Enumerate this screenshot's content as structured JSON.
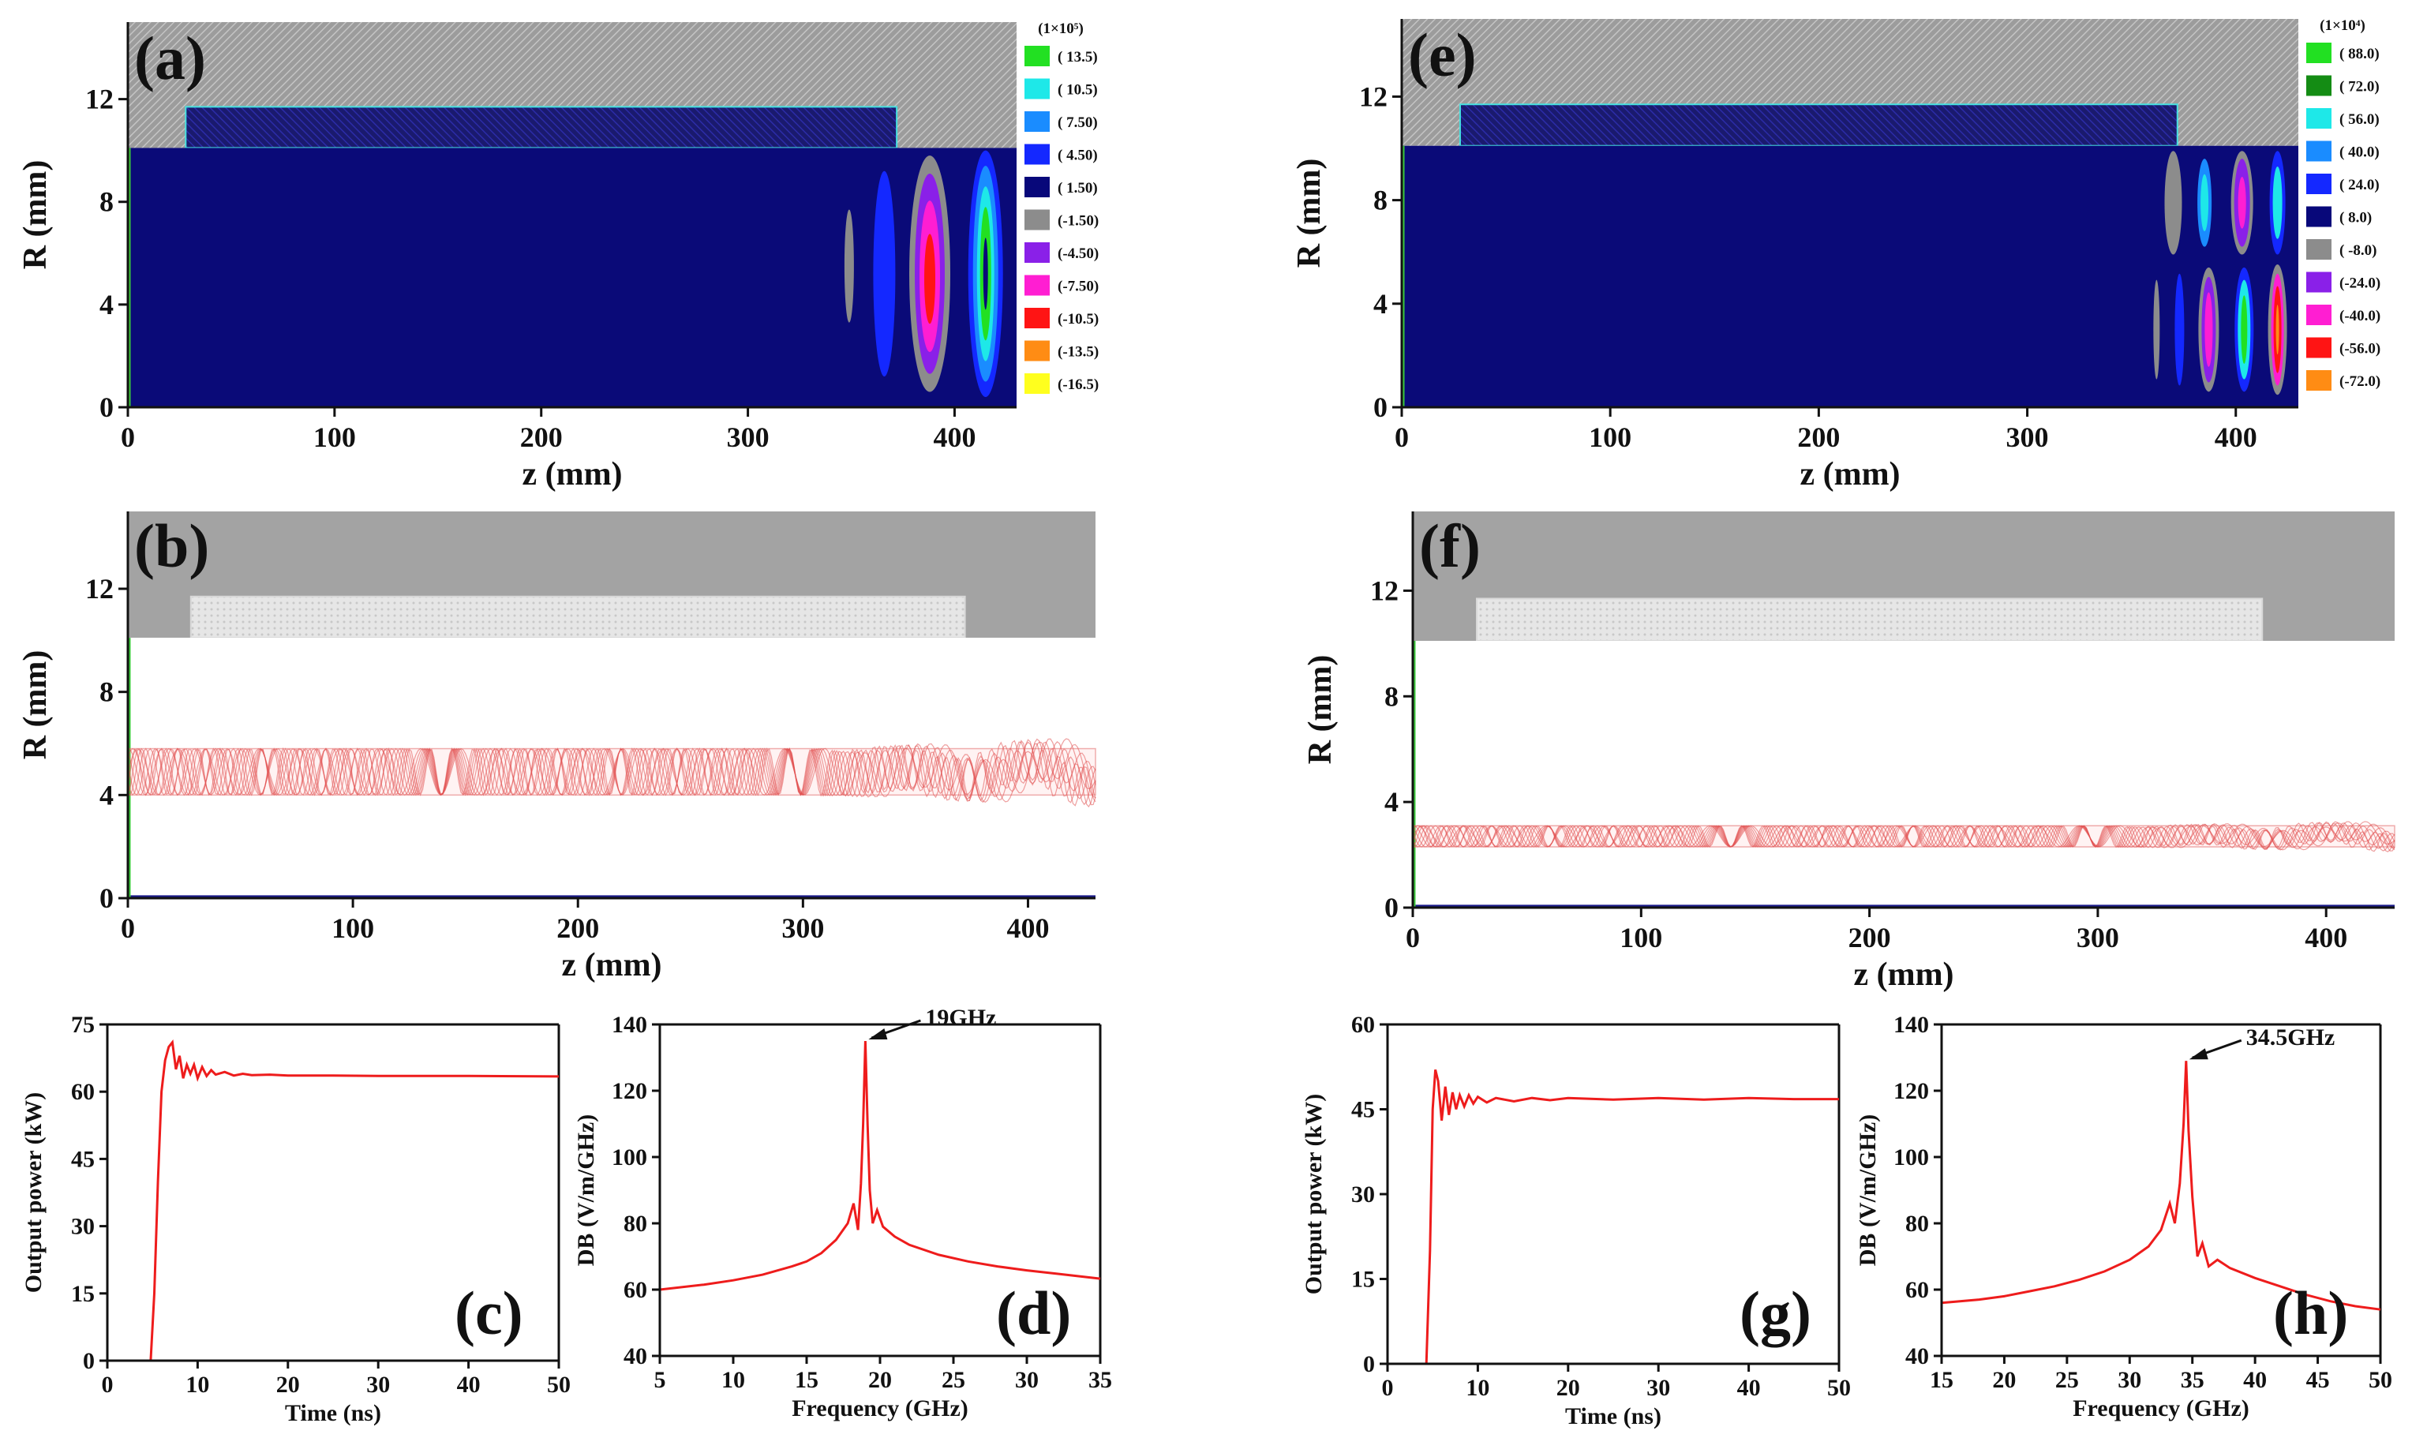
{
  "chart_data": [
    {
      "id": "a",
      "panel_label": "(a)",
      "type": "heatmap",
      "xlabel": "z (mm)",
      "ylabel": "R (mm)",
      "xlim": [
        0,
        430
      ],
      "ylim": [
        0,
        15
      ],
      "xticks": [
        0,
        100,
        200,
        300,
        400
      ],
      "yticks": [
        0,
        4,
        8,
        12
      ],
      "legend_title": "(1×10⁵)",
      "legend": [
        {
          "label": "( 13.5)",
          "color": "#22e022"
        },
        {
          "label": "( 10.5)",
          "color": "#1ee8e8"
        },
        {
          "label": "( 7.50)",
          "color": "#1a8cff"
        },
        {
          "label": "( 4.50)",
          "color": "#1428ff"
        },
        {
          "label": "( 1.50)",
          "color": "#08087a"
        },
        {
          "label": "(-1.50)",
          "color": "#8c8c8c"
        },
        {
          "label": "(-4.50)",
          "color": "#8a20e8"
        },
        {
          "label": "(-7.50)",
          "color": "#ff1ed2"
        },
        {
          "label": "(-10.5)",
          "color": "#ff1414"
        },
        {
          "label": "(-13.5)",
          "color": "#ff8c14"
        },
        {
          "label": "(-16.5)",
          "color": "#ffff1e"
        }
      ]
    },
    {
      "id": "b",
      "panel_label": "(b)",
      "type": "scatter",
      "xlabel": "z (mm)",
      "ylabel": "R (mm)",
      "xlim": [
        0,
        430
      ],
      "ylim": [
        0,
        15
      ],
      "xticks": [
        0,
        100,
        200,
        300,
        400
      ],
      "yticks": [
        0,
        4,
        8,
        12
      ],
      "beam_band": [
        4.0,
        5.8
      ]
    },
    {
      "id": "c",
      "panel_label": "(c)",
      "type": "line",
      "xlabel": "Time (ns)",
      "ylabel": "Output power (kW)",
      "xlim": [
        0,
        50
      ],
      "ylim": [
        0,
        75
      ],
      "xticks": [
        0,
        10,
        20,
        30,
        40,
        50
      ],
      "yticks": [
        0,
        15,
        30,
        45,
        60,
        75
      ],
      "series": [
        {
          "x": [
            0,
            4.8,
            5.2,
            5.6,
            6.0,
            6.4,
            6.8,
            7.2,
            7.6,
            8.0,
            8.4,
            8.8,
            9.2,
            9.6,
            10.0,
            10.5,
            11.0,
            11.5,
            12.0,
            13.0,
            14.0,
            15.0,
            16.0,
            18.0,
            20.0,
            25.0,
            30.0,
            40.0,
            50.0
          ],
          "y": [
            0,
            0,
            15,
            40,
            60,
            67,
            70,
            71,
            65,
            68,
            63,
            66,
            64,
            66,
            63,
            65.5,
            63.5,
            64.8,
            63.8,
            64.4,
            63.6,
            64.0,
            63.7,
            63.8,
            63.6,
            63.6,
            63.5,
            63.5,
            63.4
          ]
        }
      ]
    },
    {
      "id": "d",
      "panel_label": "(d)",
      "type": "line",
      "xlabel": "Frequency (GHz)",
      "ylabel": "DB (V/m/GHz)",
      "xlim": [
        5,
        35
      ],
      "ylim": [
        40,
        140
      ],
      "xticks": [
        5,
        10,
        15,
        20,
        25,
        30,
        35
      ],
      "yticks": [
        40,
        60,
        80,
        100,
        120,
        140
      ],
      "peak_annotation": "19GHz",
      "peak_x": 19,
      "peak_y": 135,
      "series": [
        {
          "x": [
            5,
            8,
            10,
            12,
            14,
            15,
            16,
            17,
            17.8,
            18.2,
            18.5,
            18.7,
            18.85,
            19.0,
            19.15,
            19.3,
            19.5,
            19.8,
            20.2,
            21,
            22,
            24,
            26,
            28,
            30,
            32,
            35
          ],
          "y": [
            60,
            61.5,
            62.8,
            64.5,
            67,
            68.5,
            71,
            75,
            80,
            86,
            78,
            92,
            110,
            135,
            110,
            90,
            80,
            84,
            79,
            76,
            73.5,
            70.5,
            68.5,
            67,
            65.8,
            64.8,
            63.3
          ]
        }
      ]
    },
    {
      "id": "e",
      "panel_label": "(e)",
      "type": "heatmap",
      "xlabel": "z (mm)",
      "ylabel": "R (mm)",
      "xlim": [
        0,
        430
      ],
      "ylim": [
        0,
        15
      ],
      "xticks": [
        0,
        100,
        200,
        300,
        400
      ],
      "yticks": [
        0,
        4,
        8,
        12
      ],
      "legend_title": "(1×10⁴)",
      "legend": [
        {
          "label": "( 88.0)",
          "color": "#22e022"
        },
        {
          "label": "( 72.0)",
          "color": "#148c14"
        },
        {
          "label": "( 56.0)",
          "color": "#1ee8e8"
        },
        {
          "label": "( 40.0)",
          "color": "#1a8cff"
        },
        {
          "label": "( 24.0)",
          "color": "#1428ff"
        },
        {
          "label": "( 8.0)",
          "color": "#08087a"
        },
        {
          "label": "( -8.0)",
          "color": "#8c8c8c"
        },
        {
          "label": "(-24.0)",
          "color": "#8a20e8"
        },
        {
          "label": "(-40.0)",
          "color": "#ff1ed2"
        },
        {
          "label": "(-56.0)",
          "color": "#ff1414"
        },
        {
          "label": "(-72.0)",
          "color": "#ff8c14"
        }
      ]
    },
    {
      "id": "f",
      "panel_label": "(f)",
      "type": "scatter",
      "xlabel": "z (mm)",
      "ylabel": "R (mm)",
      "xlim": [
        0,
        430
      ],
      "ylim": [
        0,
        15
      ],
      "xticks": [
        0,
        100,
        200,
        300,
        400
      ],
      "yticks": [
        0,
        4,
        8,
        12
      ],
      "beam_band": [
        2.3,
        3.1
      ]
    },
    {
      "id": "g",
      "panel_label": "(g)",
      "type": "line",
      "xlabel": "Time (ns)",
      "ylabel": "Output power (kW)",
      "xlim": [
        0,
        50
      ],
      "ylim": [
        0,
        60
      ],
      "xticks": [
        0,
        10,
        20,
        30,
        40,
        50
      ],
      "yticks": [
        0,
        15,
        30,
        45,
        60
      ],
      "series": [
        {
          "x": [
            0,
            4.3,
            4.7,
            5.0,
            5.3,
            5.6,
            6.0,
            6.4,
            6.8,
            7.2,
            7.6,
            8.0,
            8.5,
            9.0,
            9.5,
            10.0,
            11.0,
            12.0,
            14.0,
            16.0,
            18.0,
            20.0,
            25.0,
            30.0,
            35.0,
            40.0,
            45.0,
            50.0
          ],
          "y": [
            0,
            0,
            20,
            45,
            52,
            50,
            43,
            49,
            44,
            48,
            45,
            47.5,
            45.5,
            47.5,
            46,
            47.2,
            46.2,
            47.0,
            46.4,
            47.0,
            46.6,
            47.0,
            46.7,
            47.0,
            46.7,
            47.0,
            46.8,
            46.8
          ]
        }
      ]
    },
    {
      "id": "h",
      "panel_label": "(h)",
      "type": "line",
      "xlabel": "Frequency (GHz)",
      "ylabel": "DB (V/m/GHz)",
      "xlim": [
        15,
        50
      ],
      "ylim": [
        40,
        140
      ],
      "xticks": [
        15,
        20,
        25,
        30,
        35,
        40,
        45,
        50
      ],
      "yticks": [
        40,
        60,
        80,
        100,
        120,
        140
      ],
      "peak_annotation": "34.5GHz",
      "peak_x": 34.5,
      "peak_y": 129,
      "series": [
        {
          "x": [
            15,
            18,
            20,
            22,
            24,
            26,
            28,
            30,
            31.5,
            32.5,
            33.2,
            33.6,
            34.0,
            34.3,
            34.5,
            34.7,
            35.0,
            35.4,
            35.8,
            36.3,
            37,
            38,
            40,
            42,
            44,
            46,
            48,
            50
          ],
          "y": [
            56,
            57,
            58,
            59.5,
            61,
            63,
            65.5,
            69,
            73,
            78,
            86,
            80,
            92,
            110,
            129,
            108,
            88,
            70,
            74,
            67,
            69,
            66.5,
            63.5,
            61,
            58.5,
            56.5,
            55,
            54
          ]
        }
      ]
    }
  ]
}
